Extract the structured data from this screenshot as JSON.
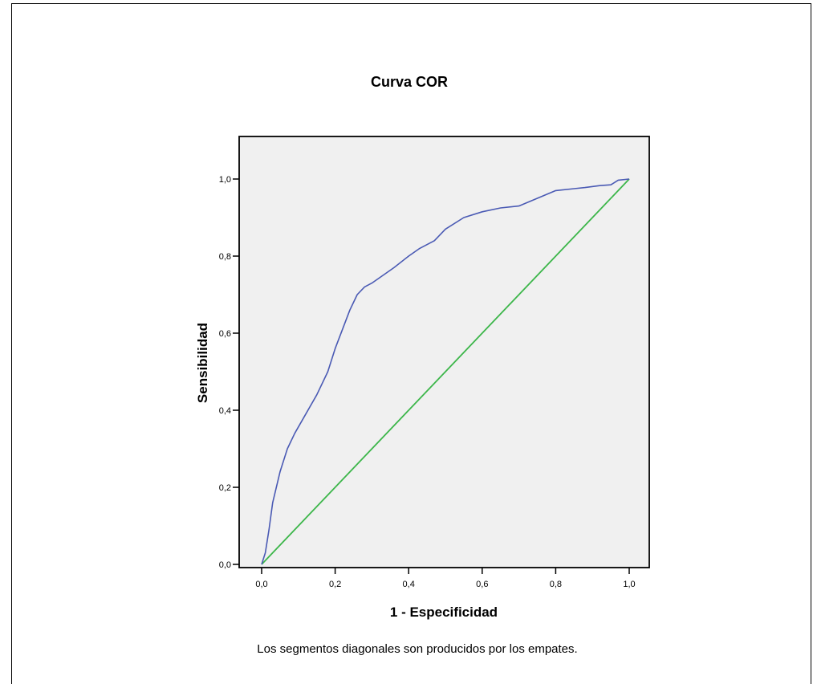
{
  "chart_data": {
    "type": "line",
    "title": "Curva COR",
    "xlabel": "1 - Especificidad",
    "ylabel": "Sensibilidad",
    "xlim": [
      0,
      1
    ],
    "ylim": [
      0,
      1
    ],
    "x_ticks": [
      "0,0",
      "0,2",
      "0,4",
      "0,6",
      "0,8",
      "1,0"
    ],
    "y_ticks": [
      "0,0",
      "0,2",
      "0,4",
      "0,6",
      "0,8",
      "1,0"
    ],
    "grid": false,
    "footnote": "Los segmentos diagonales son producidos por los empates.",
    "colors": {
      "plot_background": "#f0f0f0",
      "roc_curve": "#4a5ab4",
      "reference_line": "#3cb64a"
    },
    "series": [
      {
        "x": [
          0,
          0.01,
          0.02,
          0.03,
          0.05,
          0.07,
          0.09,
          0.12,
          0.15,
          0.18,
          0.2,
          0.22,
          0.24,
          0.26,
          0.28,
          0.3,
          0.33,
          0.36,
          0.4,
          0.43,
          0.47,
          0.5,
          0.55,
          0.6,
          0.65,
          0.7,
          0.75,
          0.8,
          0.85,
          0.88,
          0.92,
          0.95,
          0.97,
          1.0
        ],
        "y": [
          0,
          0.03,
          0.09,
          0.16,
          0.24,
          0.3,
          0.34,
          0.39,
          0.44,
          0.5,
          0.56,
          0.61,
          0.66,
          0.7,
          0.72,
          0.73,
          0.75,
          0.77,
          0.8,
          0.82,
          0.84,
          0.87,
          0.9,
          0.915,
          0.925,
          0.93,
          0.95,
          0.97,
          0.975,
          0.978,
          0.983,
          0.985,
          0.997,
          1.0
        ]
      },
      {
        "x": [
          0,
          1
        ],
        "y": [
          0,
          1
        ]
      }
    ]
  }
}
